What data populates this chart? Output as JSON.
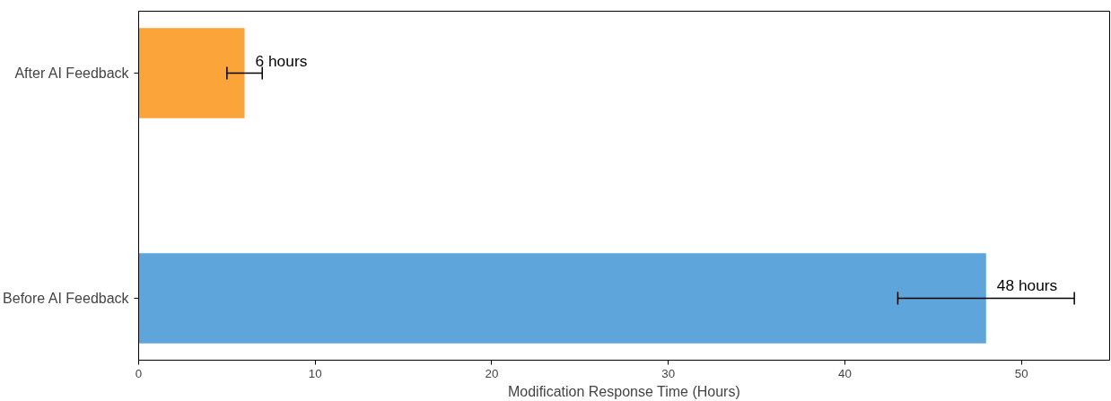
{
  "chart_data": {
    "type": "bar",
    "orientation": "horizontal",
    "xlabel": "Modification Response Time (Hours)",
    "categories": [
      "After AI Feedback",
      "Before AI Feedback"
    ],
    "values": [
      6,
      48
    ],
    "colors": [
      "#faa43a",
      "#5da5da"
    ],
    "errors": [
      1,
      5
    ],
    "value_labels": [
      "6 hours",
      "48 hours"
    ],
    "xlim": [
      0,
      55
    ],
    "xticks": [
      0,
      10,
      20,
      30,
      40,
      50
    ],
    "grid": false
  }
}
